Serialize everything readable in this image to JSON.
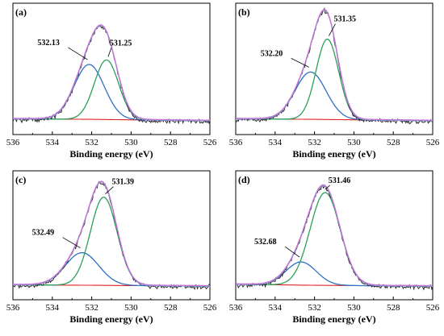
{
  "colors": {
    "raw": "#2a2a2a",
    "envelope": "#c673d6",
    "fit": "#7f9bd9",
    "peak_high": "#2f6fc4",
    "peak_low": "#2aa05a",
    "background": "#e02020",
    "axis": "#000000"
  },
  "chart_data": [
    {
      "type": "line",
      "panel_label": "(a)",
      "xlabel": "Binding energy (eV)",
      "ylabel": "",
      "xlim": [
        536,
        526
      ],
      "x_reversed": true,
      "xticks": [
        536,
        534,
        532,
        530,
        528,
        526
      ],
      "grid": false,
      "peaks": [
        {
          "label": "532.13",
          "center": 532.13,
          "height": 0.58,
          "fwhm": 1.8,
          "color": "peak_high"
        },
        {
          "label": "531.25",
          "center": 531.25,
          "height": 0.63,
          "fwhm": 1.45,
          "color": "peak_low"
        }
      ],
      "baseline": {
        "x": [
          536,
          532,
          526
        ],
        "y": [
          0.02,
          0.015,
          0.0
        ]
      },
      "background_segment": [
        535.5,
        526
      ]
    },
    {
      "type": "line",
      "panel_label": "(b)",
      "xlabel": "Binding energy (eV)",
      "ylabel": "",
      "xlim": [
        536,
        526
      ],
      "x_reversed": true,
      "xticks": [
        536,
        534,
        532,
        530,
        528,
        526
      ],
      "grid": false,
      "peaks": [
        {
          "label": "532.20",
          "center": 532.2,
          "height": 0.5,
          "fwhm": 1.85,
          "color": "peak_high"
        },
        {
          "label": "531.35",
          "center": 531.35,
          "height": 0.85,
          "fwhm": 1.35,
          "color": "peak_low"
        }
      ],
      "baseline": {
        "x": [
          536,
          532,
          526
        ],
        "y": [
          0.02,
          0.015,
          0.0
        ]
      },
      "background_segment": [
        535.5,
        526
      ]
    },
    {
      "type": "line",
      "panel_label": "(c)",
      "xlabel": "Binding energy (eV)",
      "ylabel": "",
      "xlim": [
        536,
        526
      ],
      "x_reversed": true,
      "xticks": [
        536,
        534,
        532,
        530,
        528,
        526
      ],
      "grid": false,
      "peaks": [
        {
          "label": "532.49",
          "center": 532.49,
          "height": 0.35,
          "fwhm": 2.0,
          "color": "peak_high"
        },
        {
          "label": "531.39",
          "center": 531.39,
          "height": 0.95,
          "fwhm": 1.6,
          "color": "peak_low"
        }
      ],
      "baseline": {
        "x": [
          536,
          532,
          526
        ],
        "y": [
          0.015,
          0.01,
          0.0
        ]
      },
      "background_segment": [
        535.5,
        526
      ]
    },
    {
      "type": "line",
      "panel_label": "(d)",
      "xlabel": "Binding energy (eV)",
      "ylabel": "",
      "xlim": [
        536,
        526
      ],
      "x_reversed": true,
      "xticks": [
        536,
        534,
        532,
        530,
        528,
        526
      ],
      "grid": false,
      "peaks": [
        {
          "label": "532.68",
          "center": 532.68,
          "height": 0.25,
          "fwhm": 1.8,
          "color": "peak_high"
        },
        {
          "label": "531.46",
          "center": 531.46,
          "height": 1.0,
          "fwhm": 1.8,
          "color": "peak_low"
        }
      ],
      "baseline": {
        "x": [
          536,
          532,
          526
        ],
        "y": [
          0.02,
          0.01,
          0.0
        ]
      },
      "background_segment": [
        535.5,
        526
      ]
    }
  ]
}
